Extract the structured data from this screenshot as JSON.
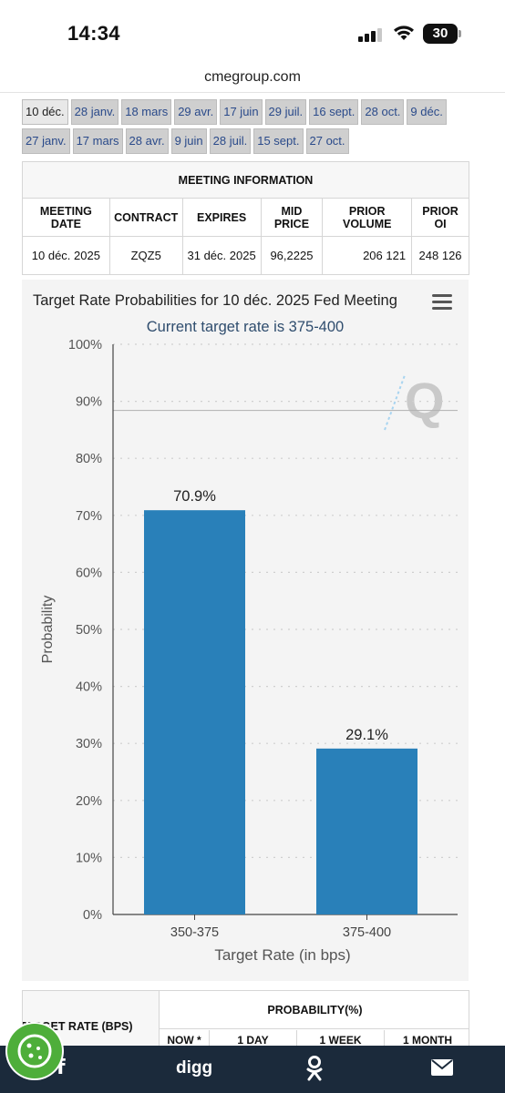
{
  "status_bar": {
    "time": "14:34",
    "battery": "30"
  },
  "browser": {
    "url": "cmegroup.com"
  },
  "date_tabs": {
    "row1": [
      "10 déc.",
      "28 janv.",
      "18 mars",
      "29 avr.",
      "17 juin",
      "29 juil.",
      "16 sept.",
      "28 oct.",
      "9 déc."
    ],
    "row2": [
      "27 janv.",
      "17 mars",
      "28 avr.",
      "9 juin",
      "28 juil.",
      "15 sept.",
      "27 oct."
    ],
    "active": "10 déc."
  },
  "meeting_info": {
    "title": "MEETING INFORMATION",
    "headers": [
      "MEETING DATE",
      "CONTRACT",
      "EXPIRES",
      "MID PRICE",
      "PRIOR VOLUME",
      "PRIOR OI"
    ],
    "row": [
      "10 déc. 2025",
      "ZQZ5",
      "31 déc. 2025",
      "96,2225",
      "206 121",
      "248 126"
    ]
  },
  "chart_data": {
    "type": "bar",
    "title": "Target Rate Probabilities for 10 déc. 2025 Fed Meeting",
    "subtitle": "Current target rate is 375-400",
    "categories": [
      "350-375",
      "375-400"
    ],
    "values": [
      70.9,
      29.1
    ],
    "data_labels": [
      "70.9%",
      "29.1%"
    ],
    "xlabel": "Target Rate (in bps)",
    "ylabel": "Probability",
    "ylim": [
      0,
      100
    ],
    "yticks": [
      "0%",
      "10%",
      "20%",
      "30%",
      "40%",
      "50%",
      "60%",
      "70%",
      "80%",
      "90%",
      "100%"
    ],
    "grid": true,
    "colors": {
      "bar": "#2980b9",
      "subtitle": "#2f4d6e",
      "watermark": "#c9c9c9"
    },
    "watermark": "Q"
  },
  "probability_table": {
    "left_header": "TARGET RATE (BPS)",
    "right_header": "PROBABILITY(%)",
    "subheaders": [
      "NOW *",
      "1 DAY",
      "1 WEEK",
      "1 MONTH"
    ]
  },
  "bottom_nav": {
    "digg": "digg"
  },
  "icons": [
    "signal-icon",
    "wifi-icon",
    "battery-icon",
    "menu-icon",
    "facebook-icon",
    "odnoklassniki-icon",
    "mail-icon",
    "cookie-icon"
  ]
}
